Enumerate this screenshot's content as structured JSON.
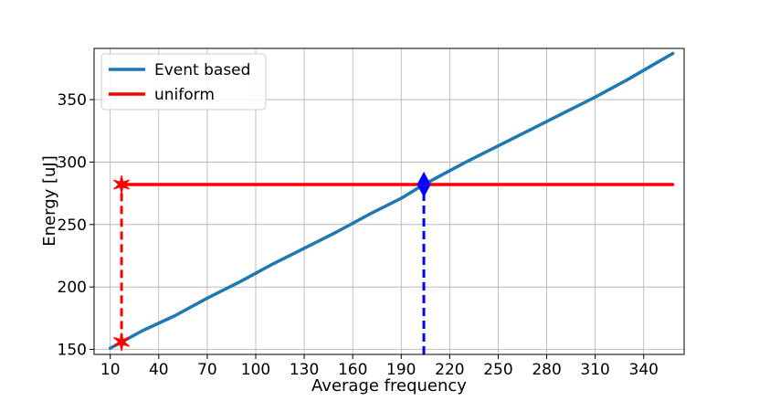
{
  "chart_data": {
    "type": "line",
    "xlabel": "Average frequency",
    "ylabel": "Energy [uJ]",
    "xlim": [
      0,
      365
    ],
    "ylim": [
      146,
      391
    ],
    "xticks": [
      10,
      40,
      70,
      100,
      130,
      160,
      190,
      220,
      250,
      280,
      310,
      340
    ],
    "yticks": [
      150,
      200,
      250,
      300,
      350
    ],
    "grid": true,
    "legend_position": "top-left",
    "series": [
      {
        "name": "Event based",
        "color": "#1f77b4",
        "x": [
          10,
          30,
          50,
          70,
          90,
          110,
          130,
          150,
          170,
          190,
          204,
          230,
          250,
          270,
          290,
          310,
          330,
          350,
          358
        ],
        "y": [
          151,
          165,
          177,
          191,
          204,
          218,
          231,
          244,
          258,
          271,
          282,
          300,
          313,
          326,
          339,
          352,
          366,
          381,
          387
        ]
      },
      {
        "name": "uniform",
        "color": "#ff0000",
        "x": [
          17,
          358
        ],
        "y": [
          282,
          282
        ]
      }
    ],
    "annotations": [
      {
        "type": "star-marker",
        "color": "#ff0000",
        "x": 17,
        "y": 282
      },
      {
        "type": "star-marker",
        "color": "#ff0000",
        "x": 17,
        "y": 156
      },
      {
        "type": "dashed-vline",
        "color": "#ff0000",
        "x": 17,
        "y_from": 156,
        "y_to": 282
      },
      {
        "type": "diamond-marker",
        "color": "#0000ff",
        "x": 204,
        "y": 282
      },
      {
        "type": "dashed-vline",
        "color": "#0000ff",
        "x": 204,
        "y_from": 146,
        "y_to": 282
      }
    ]
  }
}
